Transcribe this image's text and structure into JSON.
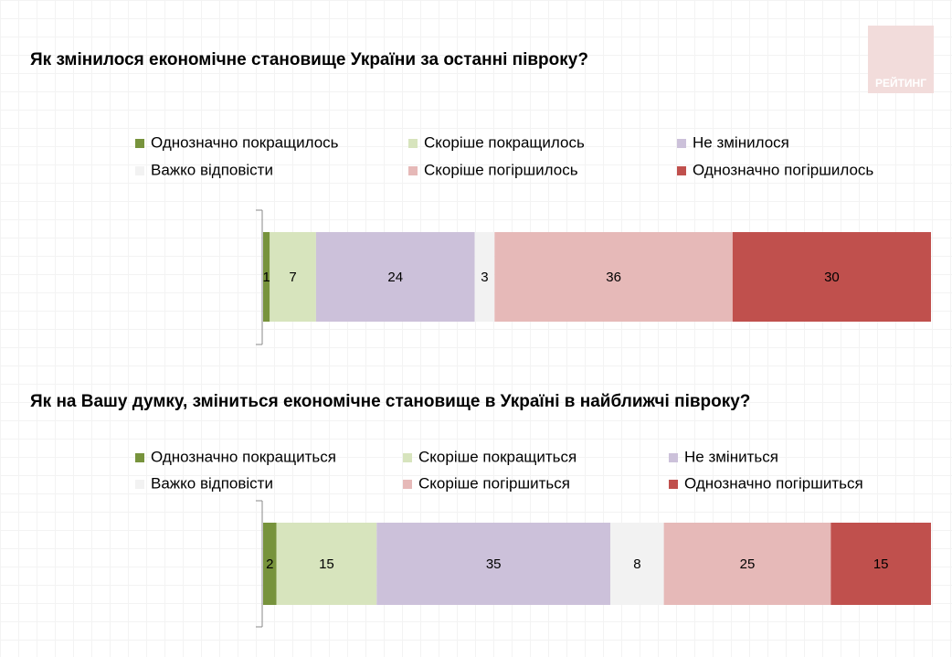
{
  "logo": "РЕЙТИНГ",
  "chart_data": [
    {
      "type": "stacked_bar",
      "title": "Як змінилося економічне становище України за останні півроку?",
      "series": [
        {
          "name": "Однозначно покращилось",
          "color": "#77933c",
          "values": [
            1
          ]
        },
        {
          "name": "Скоріше покращилось",
          "color": "#d7e4bd",
          "values": [
            7
          ]
        },
        {
          "name": "Не змінилося",
          "color": "#ccc1da",
          "values": [
            24
          ]
        },
        {
          "name": "Важко відповісти",
          "color": "#f2f2f2",
          "values": [
            3
          ]
        },
        {
          "name": "Скоріше погіршилось",
          "color": "#e6b9b8",
          "values": [
            36
          ]
        },
        {
          "name": "Однозначно погіршилось",
          "color": "#c0504d",
          "values": [
            30
          ]
        }
      ]
    },
    {
      "type": "stacked_bar",
      "title": "Як на Вашу думку, зміниться економічне становище в Україні в найближчі півроку?",
      "series": [
        {
          "name": "Однозначно покращиться",
          "color": "#77933c",
          "values": [
            2
          ]
        },
        {
          "name": "Скоріше покращиться",
          "color": "#d7e4bd",
          "values": [
            15
          ]
        },
        {
          "name": "Не зміниться",
          "color": "#ccc1da",
          "values": [
            35
          ]
        },
        {
          "name": "Важко відповісти",
          "color": "#f2f2f2",
          "values": [
            8
          ]
        },
        {
          "name": "Скоріше погіршиться",
          "color": "#e6b9b8",
          "values": [
            25
          ]
        },
        {
          "name": "Однозначно погіршиться",
          "color": "#c0504d",
          "values": [
            15
          ]
        }
      ]
    }
  ]
}
